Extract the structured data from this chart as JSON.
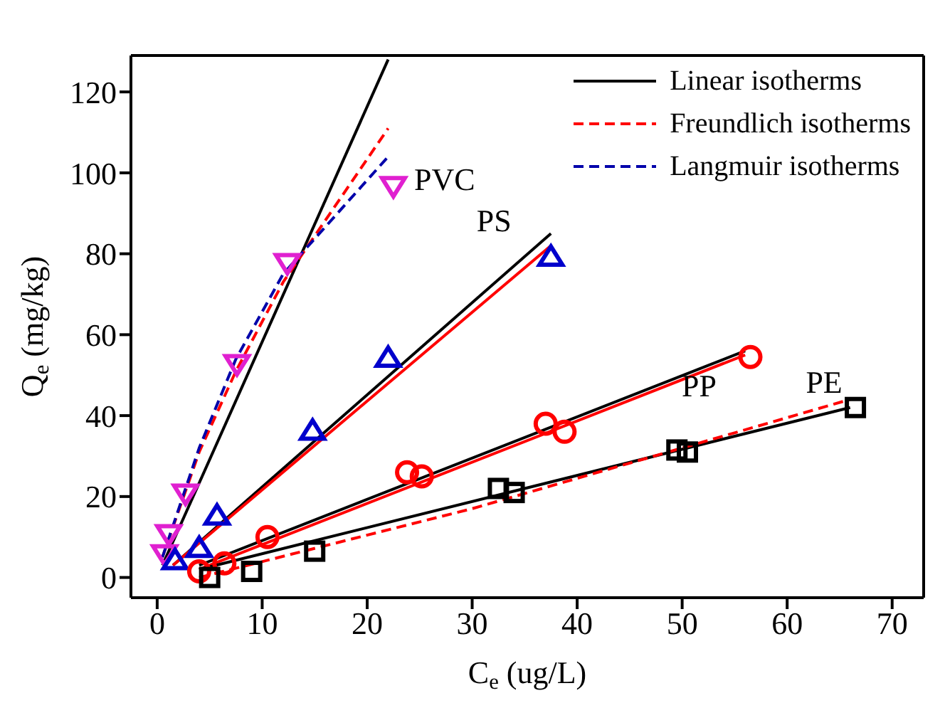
{
  "chart_data": {
    "type": "scatter",
    "xlabel": "C$_{e}$ (ug/L)",
    "ylabel": "Q$_{e}$ (mg/kg)",
    "xlim": [
      -2.5,
      73
    ],
    "ylim": [
      -5,
      129
    ],
    "xticks": [
      0,
      10,
      20,
      30,
      40,
      50,
      60,
      70
    ],
    "yticks": [
      0,
      20,
      40,
      60,
      80,
      100,
      120
    ],
    "legend": "top right",
    "series": [
      {
        "type": "line",
        "name": "Linear isotherms",
        "color": "#000000",
        "line_style": "solid",
        "x": [
          0.5,
          22
        ],
        "values": [
          3,
          128
        ]
      },
      {
        "type": "line",
        "name": "Freundlich isotherms",
        "color": "#ff0000",
        "line_style": "dashed",
        "x": [
          0.5,
          4,
          7.5,
          12,
          22
        ],
        "values": [
          5,
          31,
          51,
          73,
          111
        ]
      },
      {
        "type": "line",
        "name": "Langmuir isotherms",
        "color": "#0000aa",
        "line_style": "dashed",
        "x": [
          0.5,
          4,
          7.5,
          12,
          22
        ],
        "values": [
          5,
          32,
          54,
          75,
          104
        ]
      },
      {
        "type": "line",
        "color": "#000000",
        "line_style": "solid",
        "x": [
          1.5,
          37.5
        ],
        "values": [
          3,
          85
        ]
      },
      {
        "type": "line",
        "color": "#ff0000",
        "line_style": "solid",
        "x": [
          1.5,
          37.5
        ],
        "values": [
          3,
          82
        ]
      },
      {
        "type": "line",
        "color": "#000000",
        "line_style": "solid",
        "x": [
          4,
          56
        ],
        "values": [
          3,
          56
        ]
      },
      {
        "type": "line",
        "color": "#ff0000",
        "line_style": "solid",
        "x": [
          4,
          56
        ],
        "values": [
          2,
          55
        ]
      },
      {
        "type": "line",
        "color": "#000000",
        "line_style": "solid",
        "x": [
          4,
          66
        ],
        "values": [
          2,
          42
        ]
      },
      {
        "type": "line",
        "color": "#ff0000",
        "line_style": "dashed",
        "x": [
          4,
          30,
          66
        ],
        "values": [
          0,
          17,
          44
        ]
      },
      {
        "name": "PVC",
        "color": "#e020d0",
        "marker": "triangle-down",
        "x": [
          0.7,
          1.1,
          2.7,
          7.6,
          12.4,
          22.5
        ],
        "values": [
          6,
          11,
          21,
          53,
          78,
          97
        ]
      },
      {
        "name": "PS",
        "color": "#0000cc",
        "marker": "triangle",
        "x": [
          1.7,
          4,
          5.7,
          14.8,
          22,
          37.5
        ],
        "values": [
          4,
          7,
          15,
          36,
          54,
          79
        ]
      },
      {
        "name": "PP",
        "color": "#ff0000",
        "marker": "circle",
        "x": [
          4,
          6.4,
          10.5,
          23.8,
          25.2,
          37,
          38.8,
          56.5
        ],
        "values": [
          1.5,
          3.5,
          10,
          26,
          25,
          38,
          36,
          54.5
        ]
      },
      {
        "name": "PE",
        "color": "#000000",
        "marker": "square",
        "x": [
          5,
          9,
          15,
          32.5,
          34,
          49.5,
          50.5,
          66.5
        ],
        "values": [
          0,
          1.5,
          6.5,
          22,
          21,
          31.5,
          31,
          42
        ]
      }
    ]
  }
}
